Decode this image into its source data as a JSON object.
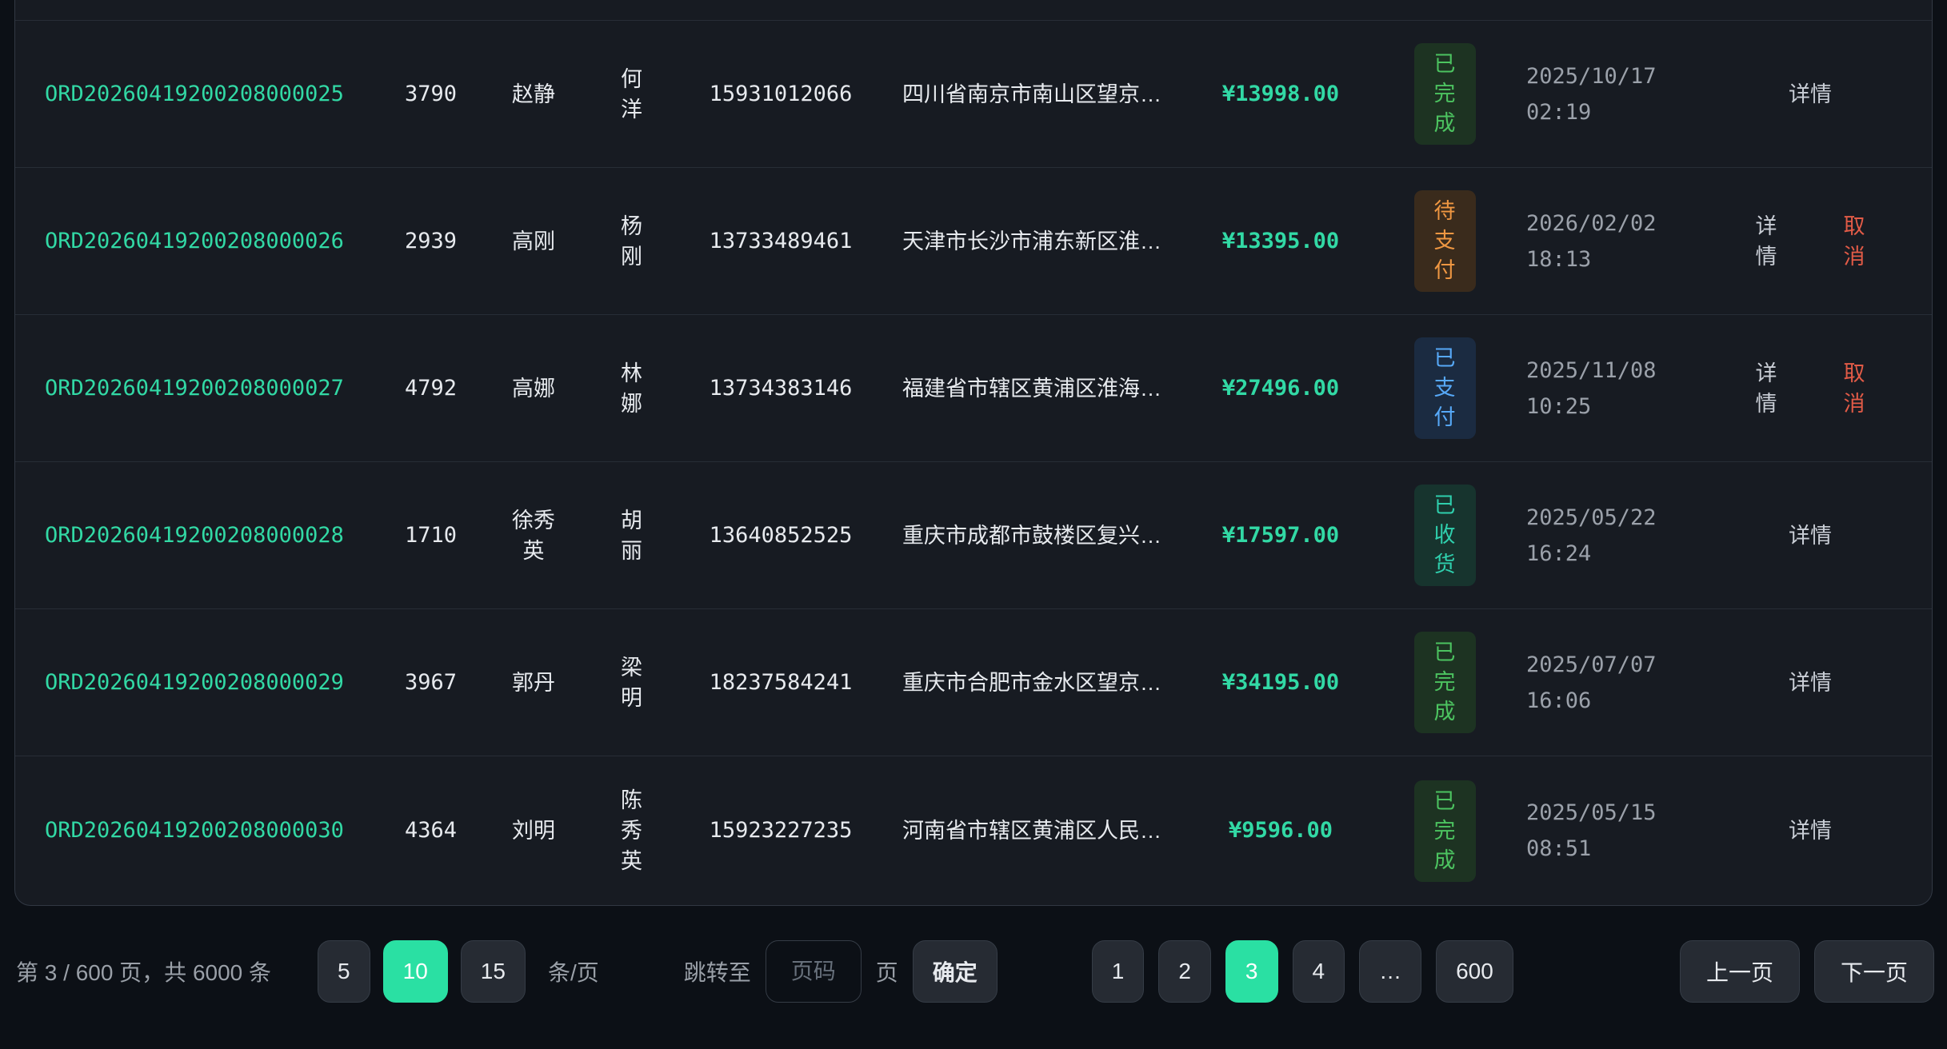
{
  "colors": {
    "accent_green": "#2ae0a3",
    "order_id_green": "#32d9a5",
    "cancel_red": "#e25b47",
    "status_completed": "#4cc360",
    "status_pending": "#ef9742",
    "status_paid": "#57a9f8",
    "status_received": "#2fcfad"
  },
  "table": {
    "rows": [
      {
        "order_id": "ORD20260419200208000025",
        "qty": "3790",
        "customer": "赵静",
        "recipient": "何洋",
        "phone": "15931012066",
        "address": "四川省南京市南山区望京…",
        "amount": "¥13998.00",
        "status": {
          "label": "已完成",
          "type": "completed"
        },
        "date": "2025/10/17",
        "time": "02:19",
        "actions": [
          {
            "label": "详情",
            "type": "detail"
          }
        ]
      },
      {
        "order_id": "ORD20260419200208000026",
        "qty": "2939",
        "customer": "高刚",
        "recipient": "杨刚",
        "phone": "13733489461",
        "address": "天津市长沙市浦东新区淮…",
        "amount": "¥13395.00",
        "status": {
          "label": "待支付",
          "type": "pending"
        },
        "date": "2026/02/02",
        "time": "18:13",
        "actions": [
          {
            "label": "详情",
            "type": "detail"
          },
          {
            "label": "取消",
            "type": "cancel"
          }
        ]
      },
      {
        "order_id": "ORD20260419200208000027",
        "qty": "4792",
        "customer": "高娜",
        "recipient": "林娜",
        "phone": "13734383146",
        "address": "福建省市辖区黄浦区淮海…",
        "amount": "¥27496.00",
        "status": {
          "label": "已支付",
          "type": "paid"
        },
        "date": "2025/11/08",
        "time": "10:25",
        "actions": [
          {
            "label": "详情",
            "type": "detail"
          },
          {
            "label": "取消",
            "type": "cancel"
          }
        ]
      },
      {
        "order_id": "ORD20260419200208000028",
        "qty": "1710",
        "customer": "徐秀英",
        "recipient": "胡丽",
        "phone": "13640852525",
        "address": "重庆市成都市鼓楼区复兴…",
        "amount": "¥17597.00",
        "status": {
          "label": "已收货",
          "type": "received"
        },
        "date": "2025/05/22",
        "time": "16:24",
        "actions": [
          {
            "label": "详情",
            "type": "detail"
          }
        ]
      },
      {
        "order_id": "ORD20260419200208000029",
        "qty": "3967",
        "customer": "郭丹",
        "recipient": "梁明",
        "phone": "18237584241",
        "address": "重庆市合肥市金水区望京…",
        "amount": "¥34195.00",
        "status": {
          "label": "已完成",
          "type": "completed"
        },
        "date": "2025/07/07",
        "time": "16:06",
        "actions": [
          {
            "label": "详情",
            "type": "detail"
          }
        ]
      },
      {
        "order_id": "ORD20260419200208000030",
        "qty": "4364",
        "customer": "刘明",
        "recipient": "陈秀英",
        "phone": "15923227235",
        "address": "河南省市辖区黄浦区人民…",
        "amount": "¥9596.00",
        "status": {
          "label": "已完成",
          "type": "completed"
        },
        "date": "2025/05/15",
        "time": "08:51",
        "actions": [
          {
            "label": "详情",
            "type": "detail"
          }
        ]
      }
    ]
  },
  "pagination": {
    "summary": "第 3 / 600 页，共 6000 条",
    "page_sizes": [
      "5",
      "10",
      "15"
    ],
    "active_page_size": "10",
    "page_size_unit": "条/页",
    "jump_label": "跳转至",
    "jump_placeholder": "页码",
    "jump_unit": "页",
    "confirm_label": "确定",
    "pages": [
      "1",
      "2",
      "3",
      "4",
      "…",
      "600"
    ],
    "active_page": "3",
    "prev_label": "上一页",
    "next_label": "下一页"
  }
}
